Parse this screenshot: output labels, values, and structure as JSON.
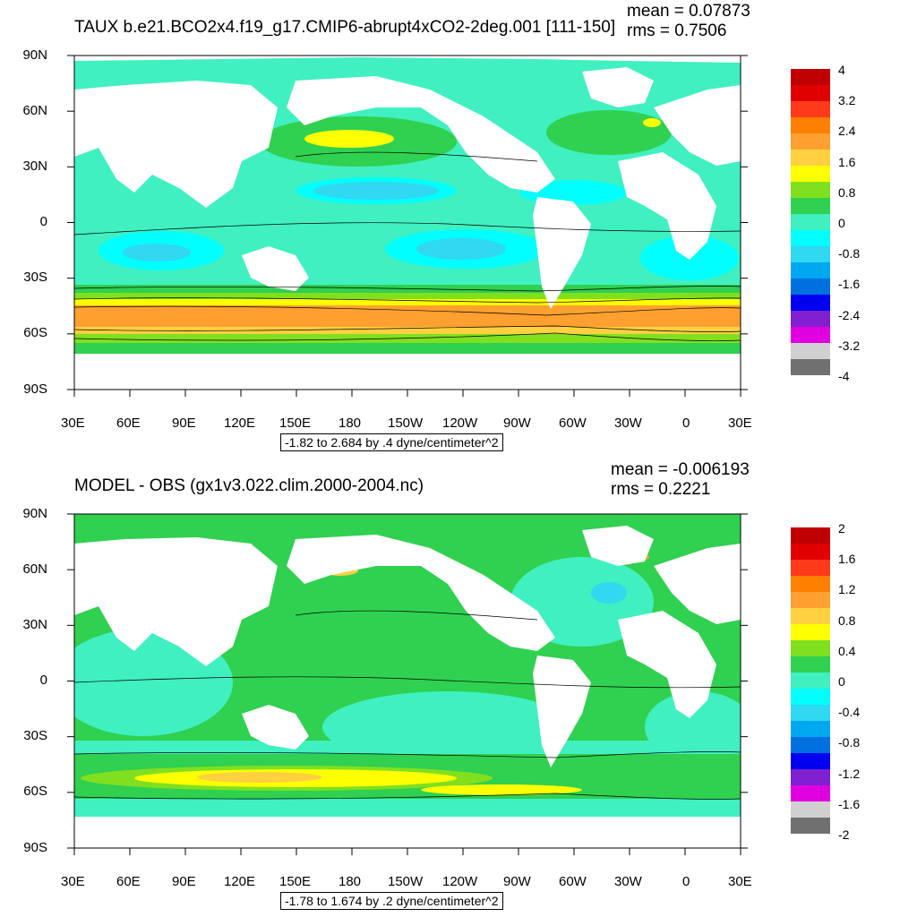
{
  "panels": [
    {
      "title": "TAUX b.e21.BCO2x4.f19_g17.CMIP6-abrupt4xCO2-2deg.001 [111-150]",
      "mean": "mean = 0.07873",
      "rms": "rms = 0.7506",
      "range_label": "-1.82 to 2.684 by .4 dyne/centimeter^2",
      "colorbar": {
        "labels": [
          "4",
          "3.2",
          "2.4",
          "1.6",
          "0.8",
          "0",
          "-0.8",
          "-1.6",
          "-2.4",
          "-3.2",
          "-4"
        ],
        "colors": [
          "#c00000",
          "#e00000",
          "#ff3a1a",
          "#ff8000",
          "#ffa030",
          "#ffd040",
          "#ffff00",
          "#80e020",
          "#30d050",
          "#40f0c0",
          "#00ffff",
          "#30d8f0",
          "#00a8f0",
          "#0070e0",
          "#0000f0",
          "#8020d0",
          "#e000e0",
          "#d0d0d0",
          "#707070"
        ]
      }
    },
    {
      "title": "MODEL - OBS (gx1v3.022.clim.2000-2004.nc)",
      "mean": "mean = -0.006193",
      "rms": "rms = 0.2221",
      "range_label": "-1.78 to 1.674 by .2 dyne/centimeter^2",
      "colorbar": {
        "labels": [
          "2",
          "1.6",
          "1.2",
          "0.8",
          "0.4",
          "0",
          "-0.4",
          "-0.8",
          "-1.2",
          "-1.6",
          "-2"
        ],
        "colors": [
          "#c00000",
          "#e00000",
          "#ff3a1a",
          "#ff8000",
          "#ffa030",
          "#ffd040",
          "#ffff00",
          "#80e020",
          "#30d050",
          "#40f0c0",
          "#00ffff",
          "#30d8f0",
          "#00a8f0",
          "#0070e0",
          "#0000f0",
          "#8020d0",
          "#e000e0",
          "#d0d0d0",
          "#707070"
        ]
      }
    }
  ],
  "axes": {
    "lat_labels": [
      "90N",
      "60N",
      "30N",
      "0",
      "30S",
      "60S",
      "90S"
    ],
    "lon_labels": [
      "30E",
      "60E",
      "90E",
      "120E",
      "150E",
      "180",
      "150W",
      "120W",
      "90W",
      "60W",
      "30W",
      "0",
      "30E"
    ]
  }
}
